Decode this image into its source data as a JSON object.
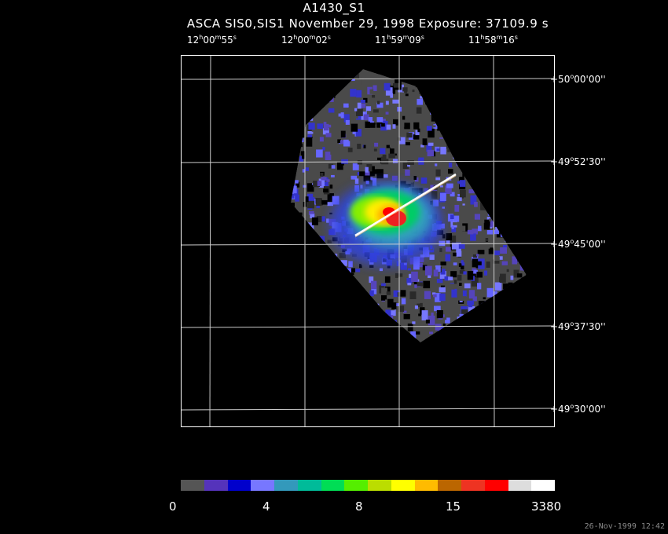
{
  "header": {
    "title": "A1430_S1",
    "subtitle": "ASCA SIS0,SIS1 November 29, 1998 Exposure: 37109.9 s"
  },
  "ra_ticks": [
    {
      "h": "12",
      "m": "00",
      "s": "55"
    },
    {
      "h": "12",
      "m": "00",
      "s": "02"
    },
    {
      "h": "11",
      "m": "59",
      "s": "09"
    },
    {
      "h": "11",
      "m": "58",
      "s": "16"
    }
  ],
  "dec_ticks": [
    {
      "d": "+50",
      "m": "00",
      "s": "00"
    },
    {
      "d": "+49",
      "m": "52",
      "s": "30"
    },
    {
      "d": "+49",
      "m": "45",
      "s": "00"
    },
    {
      "d": "+49",
      "m": "37",
      "s": "30"
    },
    {
      "d": "+49",
      "m": "30",
      "s": "00"
    }
  ],
  "colorbar": {
    "labels": [
      "0",
      "4",
      "8",
      "15",
      "3380"
    ],
    "colors": [
      "#555555",
      "#5533bb",
      "#0000cc",
      "#7777ff",
      "#3399bb",
      "#00bb99",
      "#00dd55",
      "#55ee00",
      "#bbdd00",
      "#ffff00",
      "#ffbb00",
      "#bb6600",
      "#ee3322",
      "#ff0000",
      "#dddddd",
      "#ffffff"
    ]
  },
  "timestamp": "26-Nov-1999 12:42"
}
